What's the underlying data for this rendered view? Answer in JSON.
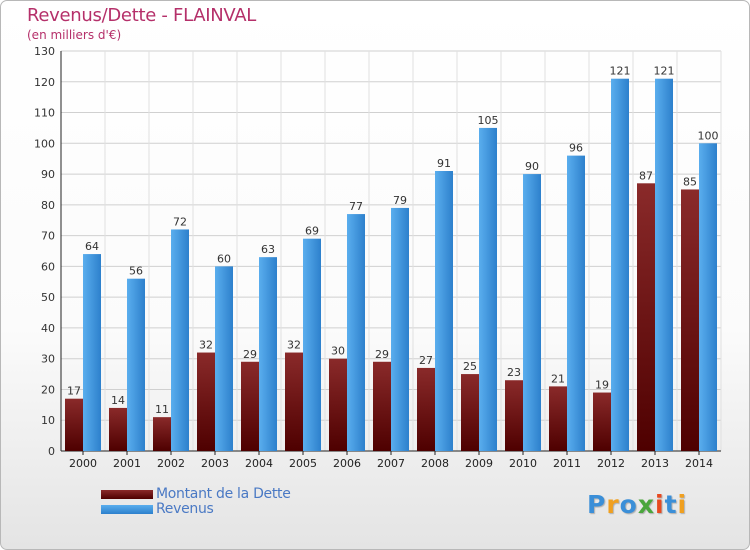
{
  "title": "Revenus/Dette - FLAINVAL",
  "subtitle": "(en milliers d'€)",
  "colors": {
    "debt_top": "#8a2a2a",
    "debt_bottom": "#4e0000",
    "revenue_top": "#5aaeee",
    "revenue_bottom": "#2d80cc",
    "title": "#b5306a",
    "legend_text": "#4a79c4"
  },
  "legend": [
    {
      "label": "Montant de la Dette",
      "series": "debt"
    },
    {
      "label": "Revenus",
      "series": "revenue"
    }
  ],
  "logo": {
    "text": "Proxiti",
    "letter_colors": [
      "#3b8fd8",
      "#f0a020",
      "#3b8fd8",
      "#4aa63c",
      "#e84a20",
      "#3b8fd8",
      "#f0a020"
    ]
  },
  "chart_data": {
    "type": "bar",
    "title": "Revenus/Dette - FLAINVAL",
    "subtitle": "(en milliers d'€)",
    "xlabel": "",
    "ylabel": "",
    "categories": [
      "2000",
      "2001",
      "2002",
      "2003",
      "2004",
      "2005",
      "2006",
      "2007",
      "2008",
      "2009",
      "2010",
      "2011",
      "2012",
      "2013",
      "2014"
    ],
    "series": [
      {
        "name": "Montant de la Dette",
        "values": [
          17,
          14,
          11,
          32,
          29,
          32,
          30,
          29,
          27,
          25,
          23,
          21,
          19,
          87,
          85
        ]
      },
      {
        "name": "Revenus",
        "values": [
          64,
          56,
          72,
          60,
          63,
          69,
          77,
          79,
          91,
          105,
          90,
          96,
          121,
          121,
          100
        ]
      }
    ],
    "ylim": [
      0,
      130
    ],
    "yticks": [
      0,
      10,
      20,
      30,
      40,
      50,
      60,
      70,
      80,
      90,
      100,
      110,
      120,
      130
    ],
    "grid": true,
    "legend_position": "bottom-left"
  }
}
